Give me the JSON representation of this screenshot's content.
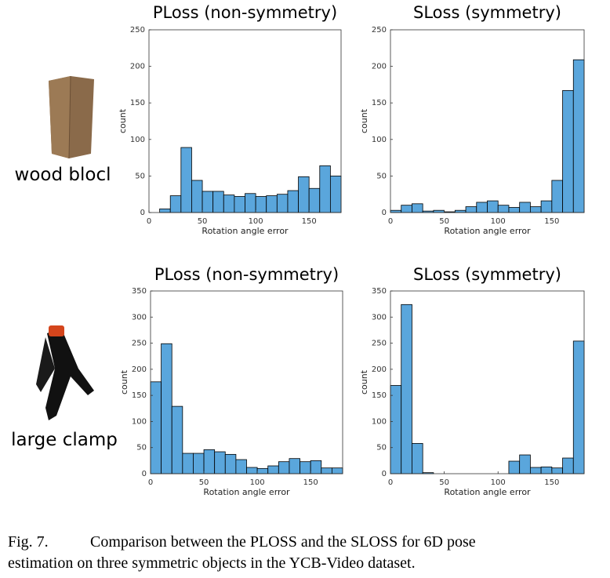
{
  "chart_data": [
    {
      "type": "histogram",
      "title": "PLoss (non-symmetry)",
      "xlabel": "Rotation angle error",
      "ylabel": "count",
      "color": "#5aa6dc",
      "bins": [
        0,
        10,
        20,
        30,
        40,
        50,
        60,
        70,
        80,
        90,
        100,
        110,
        120,
        130,
        140,
        150,
        160,
        170,
        180
      ],
      "values": [
        0,
        5,
        23,
        89,
        44,
        29,
        29,
        24,
        22,
        26,
        22,
        23,
        25,
        30,
        49,
        33,
        64,
        50
      ],
      "xlim": [
        0,
        180
      ],
      "ylim": [
        0,
        250
      ],
      "xticks": [
        0,
        50,
        100,
        150
      ],
      "yticks": [
        0,
        50,
        100,
        150,
        200,
        250
      ]
    },
    {
      "type": "histogram",
      "title": "SLoss (symmetry)",
      "xlabel": "Rotation angle error",
      "ylabel": "count",
      "color": "#5aa6dc",
      "bins": [
        0,
        10,
        20,
        30,
        40,
        50,
        60,
        70,
        80,
        90,
        100,
        110,
        120,
        130,
        140,
        150,
        160,
        170,
        180
      ],
      "values": [
        3,
        10,
        12,
        2,
        3,
        1,
        3,
        8,
        14,
        16,
        10,
        7,
        14,
        8,
        16,
        44,
        167,
        209
      ],
      "xlim": [
        0,
        180
      ],
      "ylim": [
        0,
        250
      ],
      "xticks": [
        0,
        50,
        100,
        150
      ],
      "yticks": [
        0,
        50,
        100,
        150,
        200,
        250
      ]
    },
    {
      "type": "histogram",
      "title": "PLoss (non-symmetry)",
      "xlabel": "Rotation angle error",
      "ylabel": "count",
      "color": "#5aa6dc",
      "bins": [
        0,
        10,
        20,
        30,
        40,
        50,
        60,
        70,
        80,
        90,
        100,
        110,
        120,
        130,
        140,
        150,
        160,
        170,
        180
      ],
      "values": [
        176,
        249,
        129,
        39,
        39,
        46,
        42,
        37,
        27,
        12,
        10,
        15,
        23,
        29,
        23,
        25,
        11,
        11
      ],
      "xlim": [
        0,
        180
      ],
      "ylim": [
        0,
        350
      ],
      "xticks": [
        0,
        50,
        100,
        150
      ],
      "yticks": [
        0,
        50,
        100,
        150,
        200,
        250,
        300,
        350
      ]
    },
    {
      "type": "histogram",
      "title": "SLoss (symmetry)",
      "xlabel": "Rotation angle error",
      "ylabel": "count",
      "color": "#5aa6dc",
      "bins": [
        0,
        10,
        20,
        30,
        40,
        50,
        60,
        70,
        80,
        90,
        100,
        110,
        120,
        130,
        140,
        150,
        160,
        170,
        180
      ],
      "values": [
        169,
        324,
        58,
        2,
        0,
        0,
        0,
        0,
        0,
        0,
        0,
        24,
        36,
        12,
        13,
        11,
        30,
        254
      ],
      "xlim": [
        0,
        180
      ],
      "ylim": [
        0,
        350
      ],
      "xticks": [
        0,
        50,
        100,
        150
      ],
      "yticks": [
        0,
        50,
        100,
        150,
        200,
        250,
        300,
        350
      ]
    }
  ],
  "row_labels": [
    "wood blocl",
    "large clamp"
  ],
  "caption": {
    "label": "Fig. 7.",
    "lines": [
      "Comparison between the PLOSS and the SLOSS for 6D pose",
      "estimation on three symmetric objects in the YCB-Video dataset."
    ]
  }
}
